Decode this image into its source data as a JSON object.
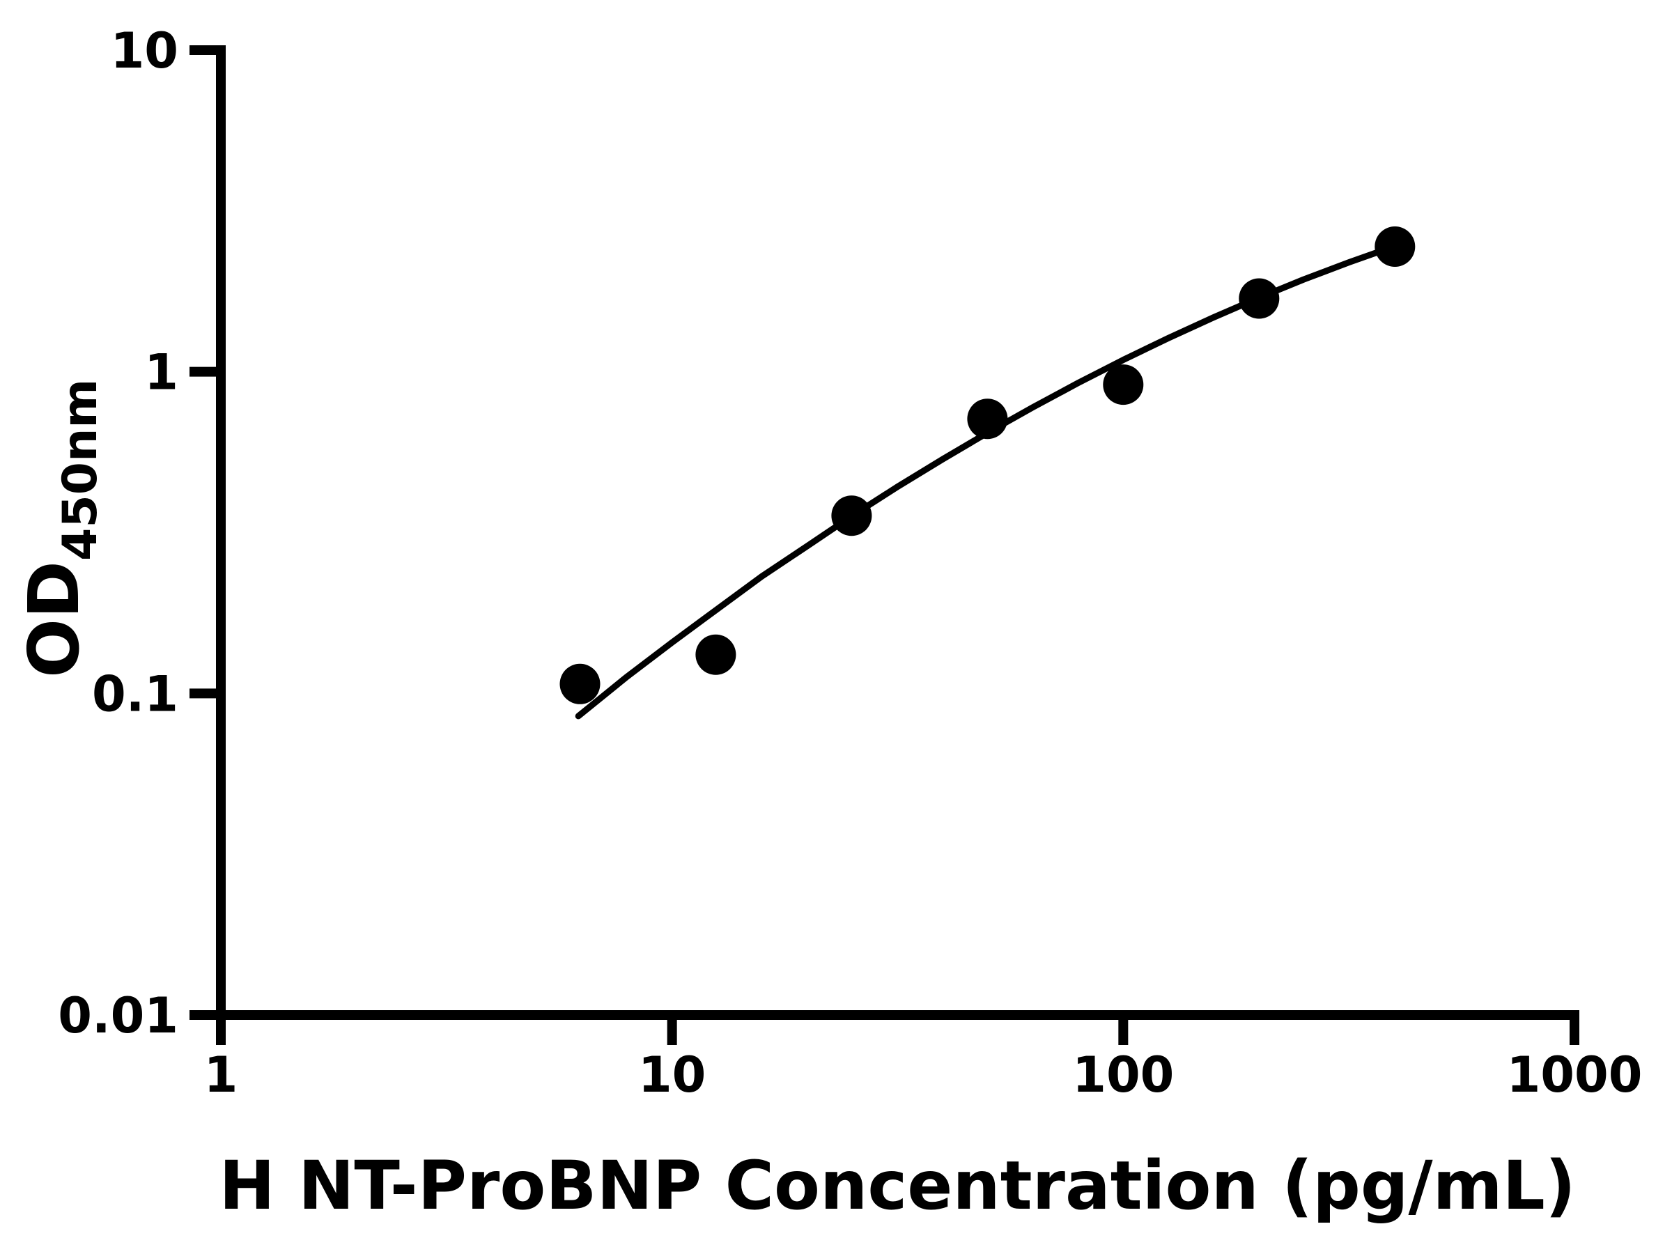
{
  "figure": {
    "background": "#ffffff",
    "ink_color": "#000000"
  },
  "chart_data": {
    "type": "scatter",
    "title": "",
    "xlabel": "H NT-ProBNP Concentration (pg/mL)",
    "ylabel_main": "OD",
    "ylabel_sub": "450nm",
    "x_scale": "log",
    "y_scale": "log",
    "xlim": [
      1,
      1000
    ],
    "ylim": [
      0.01,
      10
    ],
    "grid": false,
    "legend": "none",
    "x_ticks": [
      {
        "value": 1,
        "label": "1"
      },
      {
        "value": 10,
        "label": "10"
      },
      {
        "value": 100,
        "label": "100"
      },
      {
        "value": 1000,
        "label": "1000"
      }
    ],
    "y_ticks": [
      {
        "value": 0.01,
        "label": "0.01"
      },
      {
        "value": 0.1,
        "label": "0.1"
      },
      {
        "value": 1,
        "label": "1"
      },
      {
        "value": 10,
        "label": "10"
      }
    ],
    "series": [
      {
        "name": "standard-points",
        "type": "scatter",
        "marker": "filled-circle",
        "color": "#000000",
        "points": [
          {
            "x": 6.25,
            "y": 0.107
          },
          {
            "x": 12.5,
            "y": 0.132
          },
          {
            "x": 25,
            "y": 0.357
          },
          {
            "x": 50,
            "y": 0.714
          },
          {
            "x": 100,
            "y": 0.912
          },
          {
            "x": 200,
            "y": 1.69
          },
          {
            "x": 400,
            "y": 2.45
          }
        ]
      },
      {
        "name": "fit-curve",
        "type": "line",
        "color": "#000000",
        "points": [
          {
            "x": 6.2,
            "y": 0.085
          },
          {
            "x": 7.9,
            "y": 0.112
          },
          {
            "x": 10,
            "y": 0.144
          },
          {
            "x": 12.6,
            "y": 0.183
          },
          {
            "x": 15.8,
            "y": 0.231
          },
          {
            "x": 20,
            "y": 0.288
          },
          {
            "x": 25.1,
            "y": 0.357
          },
          {
            "x": 31.6,
            "y": 0.439
          },
          {
            "x": 39.8,
            "y": 0.535
          },
          {
            "x": 50.1,
            "y": 0.647
          },
          {
            "x": 63.1,
            "y": 0.776
          },
          {
            "x": 79.4,
            "y": 0.923
          },
          {
            "x": 100,
            "y": 1.089
          },
          {
            "x": 125.9,
            "y": 1.273
          },
          {
            "x": 158.5,
            "y": 1.476
          },
          {
            "x": 199.5,
            "y": 1.697
          },
          {
            "x": 251,
            "y": 1.936
          },
          {
            "x": 316,
            "y": 2.188
          },
          {
            "x": 400,
            "y": 2.46
          }
        ]
      }
    ]
  }
}
